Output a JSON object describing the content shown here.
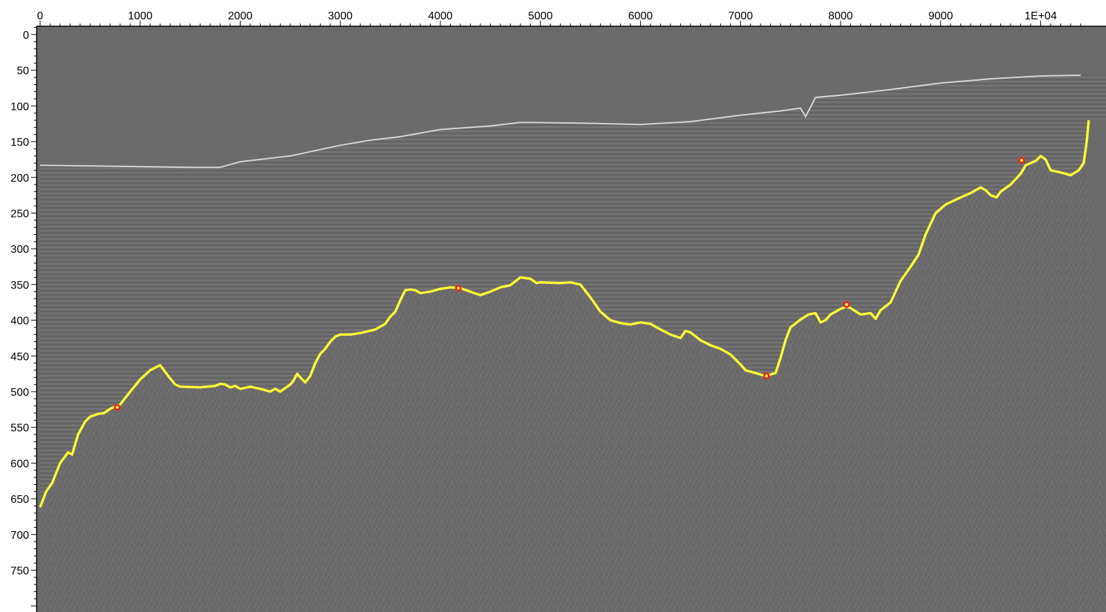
{
  "colors": {
    "background": "#ffffff",
    "seismic_base": "#6b6b6b",
    "horizon": "#ffff33",
    "control_point": "#ff1a1a",
    "axis": "#000000"
  },
  "x_axis": {
    "range": [
      0,
      10400
    ],
    "tick_labels": [
      {
        "value": 0,
        "label": "0"
      },
      {
        "value": 1000,
        "label": "1000"
      },
      {
        "value": 2000,
        "label": "2000"
      },
      {
        "value": 3000,
        "label": "3000"
      },
      {
        "value": 4000,
        "label": "4000"
      },
      {
        "value": 5000,
        "label": "5000"
      },
      {
        "value": 6000,
        "label": "6000"
      },
      {
        "value": 7000,
        "label": "7000"
      },
      {
        "value": 8000,
        "label": "8000"
      },
      {
        "value": 9000,
        "label": "9000"
      },
      {
        "value": 10000,
        "label": "1E+04"
      }
    ]
  },
  "y_axis": {
    "range": [
      -10,
      800
    ],
    "tick_labels": [
      {
        "value": 0,
        "label": "0"
      },
      {
        "value": 50,
        "label": "50"
      },
      {
        "value": 100,
        "label": "100"
      },
      {
        "value": 150,
        "label": "150"
      },
      {
        "value": 200,
        "label": "200"
      },
      {
        "value": 250,
        "label": "250"
      },
      {
        "value": 300,
        "label": "300"
      },
      {
        "value": 350,
        "label": "350"
      },
      {
        "value": 400,
        "label": "400"
      },
      {
        "value": 450,
        "label": "450"
      },
      {
        "value": 500,
        "label": "500"
      },
      {
        "value": 550,
        "label": "550"
      },
      {
        "value": 600,
        "label": "600"
      },
      {
        "value": 650,
        "label": "650"
      },
      {
        "value": 700,
        "label": "700"
      },
      {
        "value": 750,
        "label": "750"
      }
    ]
  },
  "seafloor": [
    [
      0,
      183
    ],
    [
      1500,
      186
    ],
    [
      1800,
      186
    ],
    [
      2000,
      178
    ],
    [
      2500,
      170
    ],
    [
      3000,
      155
    ],
    [
      3300,
      148
    ],
    [
      3600,
      143
    ],
    [
      4000,
      133
    ],
    [
      4500,
      128
    ],
    [
      4800,
      123
    ],
    [
      5400,
      124
    ],
    [
      6000,
      126
    ],
    [
      6500,
      122
    ],
    [
      7000,
      113
    ],
    [
      7400,
      107
    ],
    [
      7600,
      103
    ],
    [
      7650,
      115
    ],
    [
      7750,
      88
    ],
    [
      8000,
      85
    ],
    [
      8500,
      77
    ],
    [
      9000,
      68
    ],
    [
      9500,
      62
    ],
    [
      10000,
      58
    ],
    [
      10400,
      57
    ]
  ],
  "horizon": [
    [
      0,
      662
    ],
    [
      60,
      640
    ],
    [
      120,
      628
    ],
    [
      200,
      600
    ],
    [
      280,
      585
    ],
    [
      320,
      588
    ],
    [
      380,
      560
    ],
    [
      450,
      542
    ],
    [
      500,
      535
    ],
    [
      580,
      531
    ],
    [
      640,
      530
    ],
    [
      700,
      524
    ],
    [
      800,
      518
    ],
    [
      900,
      500
    ],
    [
      1000,
      483
    ],
    [
      1100,
      470
    ],
    [
      1200,
      463
    ],
    [
      1280,
      478
    ],
    [
      1350,
      490
    ],
    [
      1400,
      493
    ],
    [
      1600,
      494
    ],
    [
      1750,
      492
    ],
    [
      1800,
      489
    ],
    [
      1850,
      490
    ],
    [
      1900,
      494
    ],
    [
      1950,
      492
    ],
    [
      2000,
      496
    ],
    [
      2100,
      493
    ],
    [
      2200,
      496
    ],
    [
      2300,
      500
    ],
    [
      2350,
      496
    ],
    [
      2400,
      500
    ],
    [
      2450,
      495
    ],
    [
      2500,
      490
    ],
    [
      2530,
      485
    ],
    [
      2570,
      475
    ],
    [
      2600,
      480
    ],
    [
      2650,
      487
    ],
    [
      2700,
      478
    ],
    [
      2750,
      460
    ],
    [
      2800,
      447
    ],
    [
      2850,
      440
    ],
    [
      2900,
      430
    ],
    [
      2950,
      423
    ],
    [
      3000,
      420
    ],
    [
      3100,
      420
    ],
    [
      3200,
      418
    ],
    [
      3350,
      413
    ],
    [
      3450,
      405
    ],
    [
      3500,
      395
    ],
    [
      3550,
      388
    ],
    [
      3600,
      372
    ],
    [
      3650,
      358
    ],
    [
      3700,
      357
    ],
    [
      3750,
      358
    ],
    [
      3800,
      362
    ],
    [
      3900,
      360
    ],
    [
      4000,
      356
    ],
    [
      4100,
      354
    ],
    [
      4200,
      355
    ],
    [
      4300,
      360
    ],
    [
      4400,
      365
    ],
    [
      4500,
      360
    ],
    [
      4600,
      354
    ],
    [
      4700,
      351
    ],
    [
      4800,
      340
    ],
    [
      4900,
      342
    ],
    [
      4960,
      348
    ],
    [
      5000,
      347
    ],
    [
      5200,
      348
    ],
    [
      5300,
      347
    ],
    [
      5400,
      350
    ],
    [
      5500,
      368
    ],
    [
      5600,
      388
    ],
    [
      5700,
      400
    ],
    [
      5800,
      404
    ],
    [
      5900,
      406
    ],
    [
      6000,
      403
    ],
    [
      6100,
      405
    ],
    [
      6200,
      413
    ],
    [
      6300,
      420
    ],
    [
      6400,
      425
    ],
    [
      6450,
      415
    ],
    [
      6500,
      417
    ],
    [
      6600,
      428
    ],
    [
      6700,
      435
    ],
    [
      6800,
      440
    ],
    [
      6900,
      448
    ],
    [
      7000,
      462
    ],
    [
      7050,
      470
    ],
    [
      7150,
      474
    ],
    [
      7250,
      478
    ],
    [
      7350,
      474
    ],
    [
      7400,
      453
    ],
    [
      7450,
      428
    ],
    [
      7500,
      410
    ],
    [
      7600,
      399
    ],
    [
      7680,
      392
    ],
    [
      7750,
      390
    ],
    [
      7800,
      403
    ],
    [
      7850,
      400
    ],
    [
      7900,
      392
    ],
    [
      8000,
      384
    ],
    [
      8060,
      381
    ],
    [
      8100,
      383
    ],
    [
      8200,
      392
    ],
    [
      8300,
      390
    ],
    [
      8350,
      398
    ],
    [
      8400,
      386
    ],
    [
      8500,
      375
    ],
    [
      8600,
      345
    ],
    [
      8700,
      325
    ],
    [
      8780,
      308
    ],
    [
      8850,
      280
    ],
    [
      8950,
      250
    ],
    [
      9050,
      238
    ],
    [
      9200,
      228
    ],
    [
      9300,
      222
    ],
    [
      9400,
      214
    ],
    [
      9450,
      218
    ],
    [
      9500,
      225
    ],
    [
      9560,
      228
    ],
    [
      9600,
      220
    ],
    [
      9700,
      210
    ],
    [
      9800,
      195
    ],
    [
      9850,
      183
    ],
    [
      9950,
      177
    ],
    [
      10000,
      170
    ],
    [
      10050,
      175
    ],
    [
      10100,
      190
    ],
    [
      10200,
      193
    ],
    [
      10300,
      197
    ],
    [
      10380,
      190
    ],
    [
      10430,
      180
    ],
    [
      10460,
      150
    ],
    [
      10480,
      120
    ]
  ],
  "control_points": [
    {
      "x": 770,
      "y": 522
    },
    {
      "x": 4180,
      "y": 355
    },
    {
      "x": 7260,
      "y": 478
    },
    {
      "x": 8060,
      "y": 378
    },
    {
      "x": 9810,
      "y": 176
    }
  ]
}
